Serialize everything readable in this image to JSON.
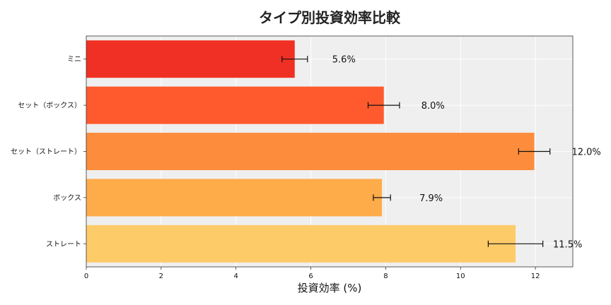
{
  "chart_data": {
    "type": "bar",
    "orientation": "horizontal",
    "title": "タイプ別投資効率比較",
    "xlabel": "投資効率 (%)",
    "ylabel": "",
    "xlim": [
      0,
      13
    ],
    "xticks": [
      0,
      2,
      4,
      6,
      8,
      10,
      12
    ],
    "grid": true,
    "categories": [
      "ミニ",
      "セット（ボックス）",
      "セット（ストレート）",
      "ボックス",
      "ストレート"
    ],
    "values": [
      5.57,
      7.95,
      11.97,
      7.9,
      11.47
    ],
    "errors": [
      0.34,
      0.42,
      0.42,
      0.23,
      0.73
    ],
    "value_labels": [
      "5.6%",
      "8.0%",
      "12.0%",
      "7.9%",
      "11.5%"
    ],
    "colors": [
      "#f03024",
      "#fe5a2e",
      "#fd8d3d",
      "#feab4a",
      "#fecb69"
    ],
    "plot_background": "#efefef"
  }
}
